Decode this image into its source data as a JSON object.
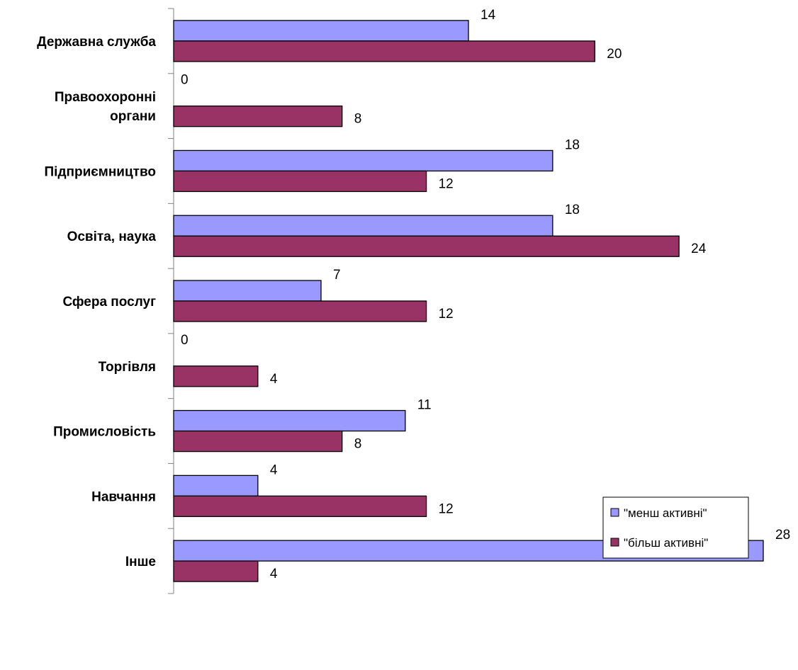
{
  "chart_data": {
    "type": "bar",
    "orientation": "horizontal",
    "categories": [
      [
        "Державна служба"
      ],
      [
        "Правоохоронні",
        "органи"
      ],
      [
        "Підприємництво"
      ],
      [
        "Освіта, наука"
      ],
      [
        "Сфера послуг"
      ],
      [
        "Торгівля"
      ],
      [
        "Промисловість"
      ],
      [
        "Навчання"
      ],
      [
        "Інше"
      ]
    ],
    "series": [
      {
        "name": "\"менш активні\"",
        "values": [
          14,
          0,
          18,
          18,
          7,
          0,
          11,
          4,
          28
        ],
        "color": "#9999ff"
      },
      {
        "name": "\"більш активні\"",
        "values": [
          20,
          8,
          12,
          24,
          12,
          4,
          8,
          12,
          4
        ],
        "color": "#993366"
      }
    ],
    "xlim": [
      0,
      28
    ],
    "grid": false,
    "legend_position": "right",
    "title": "",
    "xlabel": "",
    "ylabel": ""
  }
}
